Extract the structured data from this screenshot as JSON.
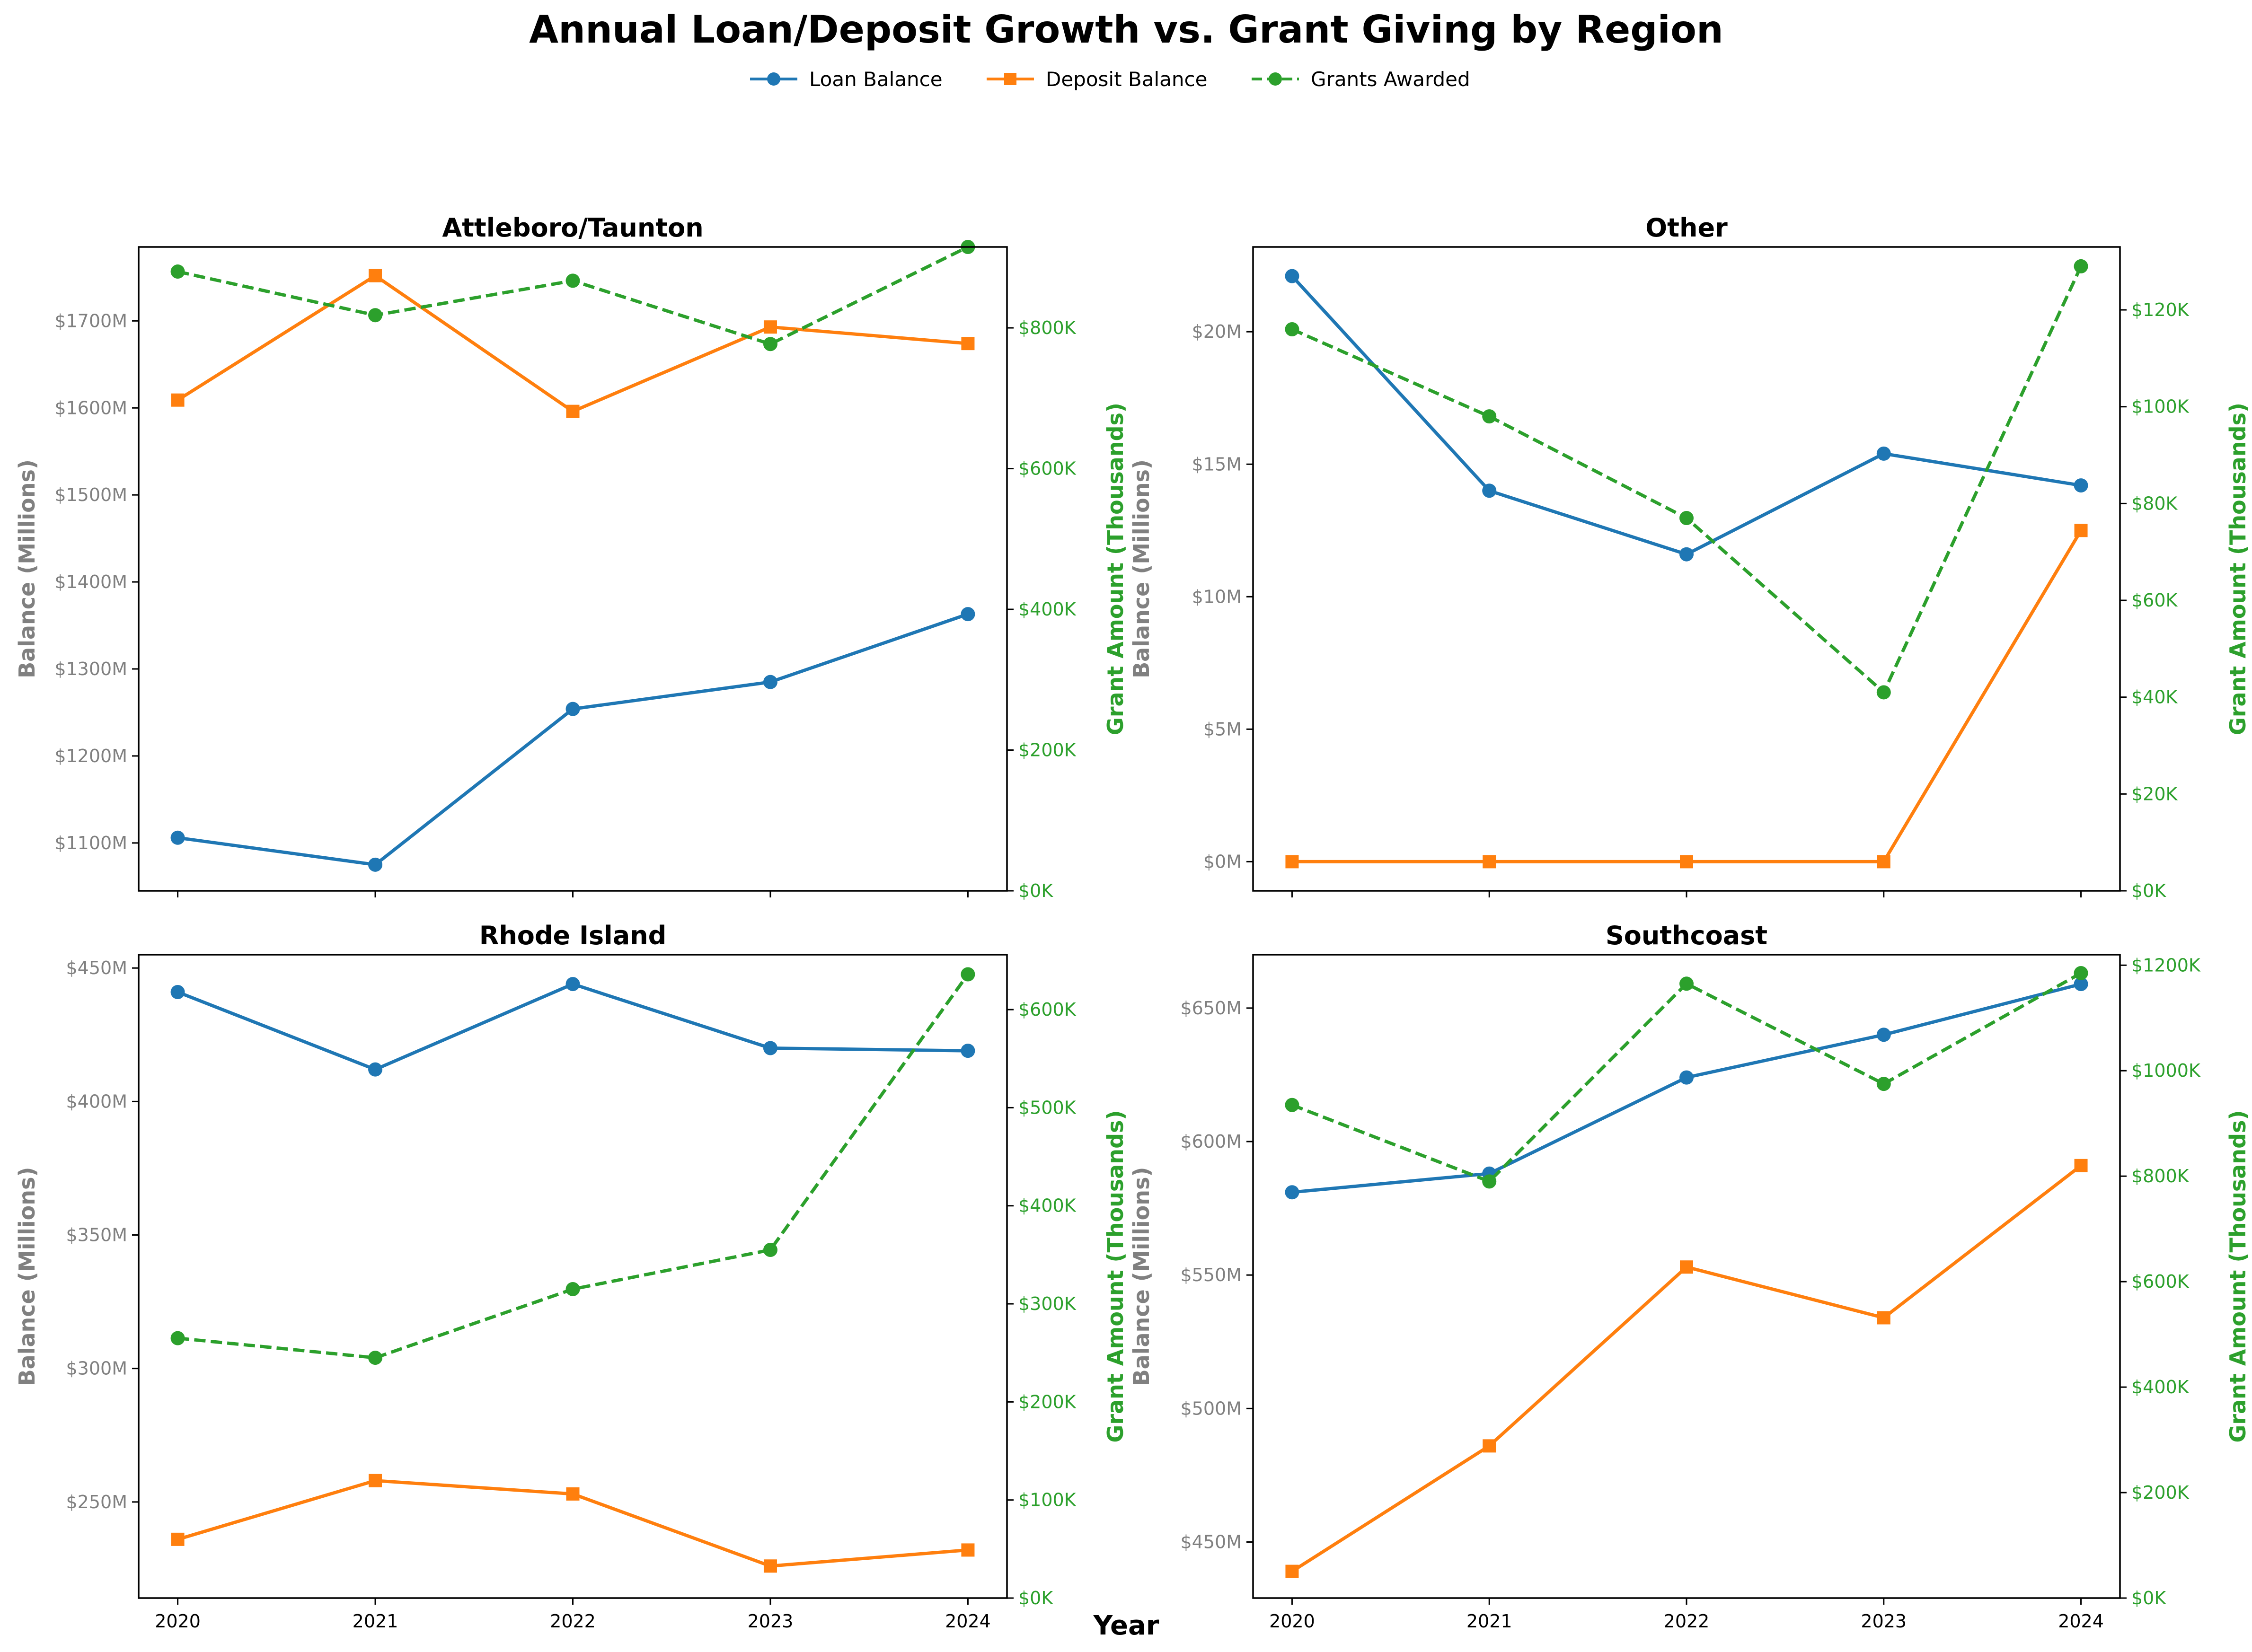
{
  "title": "Annual Loan/Deposit Growth vs. Grant Giving by Region",
  "xlabel": "Year",
  "colors": {
    "loan": "#1f77b4",
    "deposit": "#ff7f0e",
    "grants": "#2ca02c",
    "left_axis_text": "#808080",
    "right_axis_text": "#2ca02c"
  },
  "legend": {
    "placement": "top-center",
    "items": [
      {
        "label": "Loan Balance",
        "color": "#1f77b4",
        "marker": "circle",
        "dash": false
      },
      {
        "label": "Deposit Balance",
        "color": "#ff7f0e",
        "marker": "square",
        "dash": false
      },
      {
        "label": "Grants Awarded",
        "color": "#2ca02c",
        "marker": "circle",
        "dash": true
      }
    ]
  },
  "chart_data": [
    {
      "type": "line",
      "title": "Attleboro/Taunton",
      "x": [
        2020,
        2021,
        2022,
        2023,
        2024
      ],
      "ylabel": "Balance (Millions)",
      "y2label": "Grant Amount (Thousands)",
      "ylim": [
        1045,
        1785
      ],
      "yticks": [
        1100,
        1200,
        1300,
        1400,
        1500,
        1600,
        1700
      ],
      "ytick_labels": [
        "$1100M",
        "$1200M",
        "$1300M",
        "$1400M",
        "$1500M",
        "$1600M",
        "$1700M"
      ],
      "y2lim": [
        0,
        915
      ],
      "y2ticks": [
        0,
        200,
        400,
        600,
        800
      ],
      "y2tick_labels": [
        "$0K",
        "$200K",
        "$400K",
        "$600K",
        "$800K"
      ],
      "show_xticklabels": false,
      "series": [
        {
          "name": "Loan Balance",
          "axis": "left",
          "values": [
            1106,
            1075,
            1254,
            1285,
            1363
          ]
        },
        {
          "name": "Deposit Balance",
          "axis": "left",
          "values": [
            1609,
            1752,
            1596,
            1693,
            1674
          ]
        },
        {
          "name": "Grants Awarded",
          "axis": "right",
          "values": [
            880,
            818,
            867,
            777,
            915
          ]
        }
      ]
    },
    {
      "type": "line",
      "title": "Other",
      "x": [
        2020,
        2021,
        2022,
        2023,
        2024
      ],
      "ylabel": "Balance (Millions)",
      "y2label": "Grant Amount (Thousands)",
      "ylim": [
        -1.1,
        23.2
      ],
      "yticks": [
        0,
        5,
        10,
        15,
        20
      ],
      "ytick_labels": [
        "$0M",
        "$5M",
        "$10M",
        "$15M",
        "$20M"
      ],
      "y2lim": [
        0,
        133
      ],
      "y2ticks": [
        0,
        20,
        40,
        60,
        80,
        100,
        120
      ],
      "y2tick_labels": [
        "$0K",
        "$20K",
        "$40K",
        "$60K",
        "$80K",
        "$100K",
        "$120K"
      ],
      "show_xticklabels": false,
      "series": [
        {
          "name": "Loan Balance",
          "axis": "left",
          "values": [
            22.1,
            14.0,
            11.6,
            15.4,
            14.2
          ]
        },
        {
          "name": "Deposit Balance",
          "axis": "left",
          "values": [
            0,
            0,
            0,
            0,
            12.5
          ]
        },
        {
          "name": "Grants Awarded",
          "axis": "right",
          "values": [
            116,
            98,
            77,
            41,
            129
          ]
        }
      ]
    },
    {
      "type": "line",
      "title": "Rhode Island",
      "x": [
        2020,
        2021,
        2022,
        2023,
        2024
      ],
      "ylabel": "Balance (Millions)",
      "y2label": "Grant Amount (Thousands)",
      "ylim": [
        214,
        455
      ],
      "yticks": [
        250,
        300,
        350,
        400,
        450
      ],
      "ytick_labels": [
        "$250M",
        "$300M",
        "$350M",
        "$400M",
        "$450M"
      ],
      "y2lim": [
        0,
        656
      ],
      "y2ticks": [
        0,
        100,
        200,
        300,
        400,
        500,
        600
      ],
      "y2tick_labels": [
        "$0K",
        "$100K",
        "$200K",
        "$300K",
        "$400K",
        "$500K",
        "$600K"
      ],
      "show_xticklabels": true,
      "series": [
        {
          "name": "Loan Balance",
          "axis": "left",
          "values": [
            441,
            412,
            444,
            420,
            419
          ]
        },
        {
          "name": "Deposit Balance",
          "axis": "left",
          "values": [
            236,
            258,
            253,
            226,
            232
          ]
        },
        {
          "name": "Grants Awarded",
          "axis": "right",
          "values": [
            265,
            245,
            315,
            355,
            636
          ]
        }
      ]
    },
    {
      "type": "line",
      "title": "Southcoast",
      "x": [
        2020,
        2021,
        2022,
        2023,
        2024
      ],
      "ylabel": "Balance (Millions)",
      "y2label": "Grant Amount (Thousands)",
      "ylim": [
        429,
        670
      ],
      "yticks": [
        450,
        500,
        550,
        600,
        650
      ],
      "ytick_labels": [
        "$450M",
        "$500M",
        "$550M",
        "$600M",
        "$650M"
      ],
      "y2lim": [
        0,
        1220
      ],
      "y2ticks": [
        0,
        200,
        400,
        600,
        800,
        1000,
        1200
      ],
      "y2tick_labels": [
        "$0K",
        "$200K",
        "$400K",
        "$600K",
        "$800K",
        "$1000K",
        "$1200K"
      ],
      "show_xticklabels": true,
      "series": [
        {
          "name": "Loan Balance",
          "axis": "left",
          "values": [
            581,
            588,
            624,
            640,
            659
          ]
        },
        {
          "name": "Deposit Balance",
          "axis": "left",
          "values": [
            439,
            486,
            553,
            534,
            591
          ]
        },
        {
          "name": "Grants Awarded",
          "axis": "right",
          "values": [
            935,
            790,
            1165,
            975,
            1185
          ]
        }
      ]
    }
  ]
}
